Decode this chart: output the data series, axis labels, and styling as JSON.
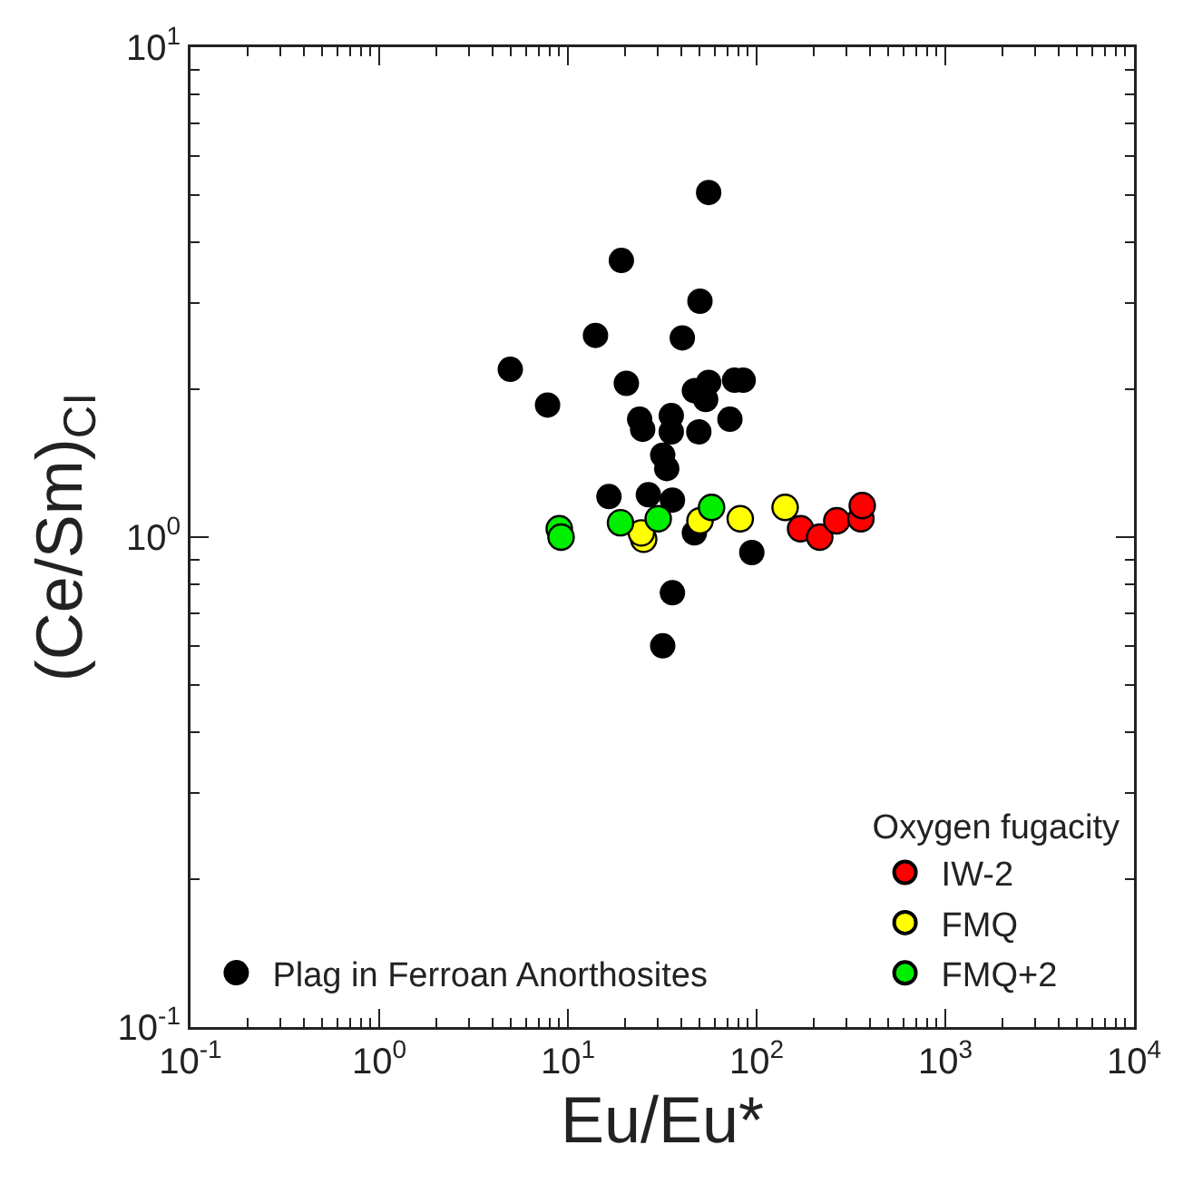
{
  "chart_data": {
    "type": "scatter",
    "xlabel": "Eu/Eu*",
    "ylabel": "(Ce/Sm)$_{CI}$",
    "legend_title": "Oxygen fugacity",
    "log": "xy",
    "grid": false,
    "legend": "bottom right",
    "marker": "circle",
    "xlim": [
      0.1,
      10000
    ],
    "ylim": [
      0.1,
      10
    ],
    "xticks": [
      {
        "value": 0.1,
        "label": "10$^{-1}$"
      },
      {
        "value": 1,
        "label": "10$^{0}$"
      },
      {
        "value": 10,
        "label": "10$^{1}$"
      },
      {
        "value": 100,
        "label": "10$^{2}$"
      },
      {
        "value": 1000,
        "label": "10$^{3}$"
      },
      {
        "value": 10000,
        "label": "10$^{4}$"
      }
    ],
    "yticks": [
      {
        "value": 0.1,
        "label": "10$^{-1}$"
      },
      {
        "value": 1,
        "label": "10$^{0}$"
      },
      {
        "value": 10,
        "label": "10$^{1}$"
      }
    ],
    "series": [
      {
        "name": "Plag in Ferroan Anorthosites",
        "color": "#000000",
        "x": [
          55.7,
          19.2,
          50.1,
          14.0,
          40.4,
          4.95,
          7.8,
          20.4,
          46.8,
          55.7,
          76.4,
          84.9,
          53.7,
          24.0,
          24.9,
          35.3,
          35.3,
          49.4,
          72.2,
          31.8,
          33.4,
          16.5,
          26.7,
          35.8,
          46.8,
          94.3,
          35.8,
          31.8
        ],
        "values": [
          5.05,
          3.67,
          3.03,
          2.58,
          2.55,
          2.2,
          1.86,
          2.06,
          1.99,
          2.07,
          2.09,
          2.09,
          1.91,
          1.74,
          1.66,
          1.77,
          1.64,
          1.64,
          1.74,
          1.47,
          1.38,
          1.21,
          1.22,
          1.19,
          1.02,
          0.93,
          0.77,
          0.6
        ]
      },
      {
        "name": "IW-2",
        "color": "#ff0000",
        "x": [
          171,
          216,
          266,
          357,
          363
        ],
        "values": [
          1.04,
          1.0,
          1.08,
          1.09,
          1.16
        ]
      },
      {
        "name": "FMQ",
        "color": "#ffff00",
        "x": [
          25.2,
          24.5,
          50.1,
          81.9,
          141.6
        ],
        "values": [
          0.99,
          1.02,
          1.08,
          1.09,
          1.15
        ]
      },
      {
        "name": "FMQ+2",
        "color": "#00ee00",
        "x": [
          9.0,
          9.2,
          19.0,
          30.1,
          57.7
        ],
        "values": [
          1.04,
          1.0,
          1.07,
          1.09,
          1.15
        ]
      }
    ]
  }
}
